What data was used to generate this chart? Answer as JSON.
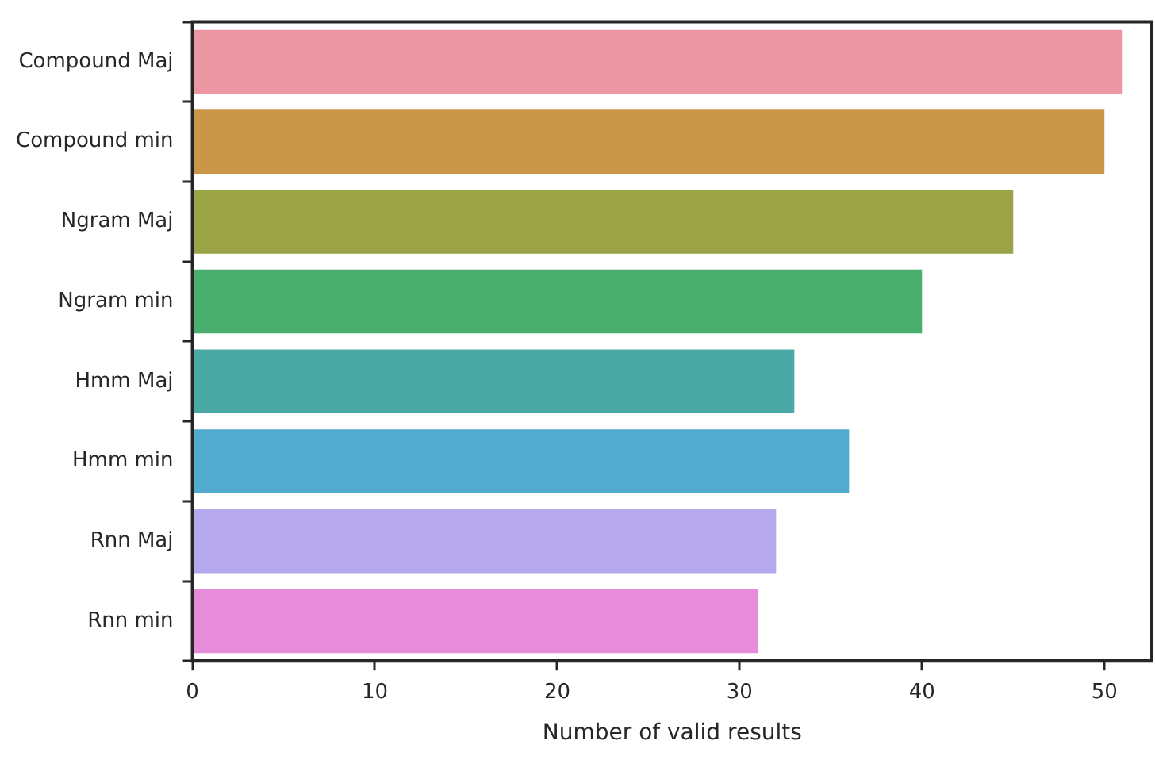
{
  "chart_data": {
    "type": "bar",
    "orientation": "horizontal",
    "xlabel": "Number of valid results",
    "categories": [
      "Compound Maj",
      "Compound min",
      "Ngram Maj",
      "Ngram min",
      "Hmm Maj",
      "Hmm min",
      "Rnn Maj",
      "Rnn min"
    ],
    "values": [
      51,
      50,
      45,
      40,
      33,
      36,
      32,
      31
    ],
    "colors": [
      "#eb96a2",
      "#ca9749",
      "#9aa346",
      "#4aae6e",
      "#4ba9a5",
      "#52abcf",
      "#b6a8ec",
      "#e78cd8"
    ],
    "xlim": [
      0,
      52.6
    ],
    "xticks": [
      0,
      10,
      20,
      30,
      40,
      50
    ],
    "grid": false,
    "legend": false
  }
}
